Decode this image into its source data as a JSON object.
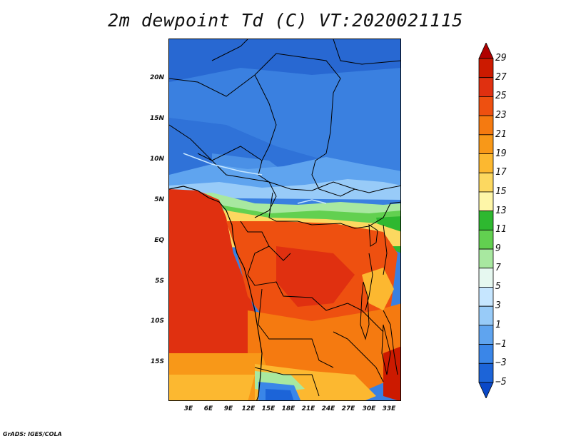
{
  "title": "2m dewpoint Td (C) VT:2020021115",
  "credit": "GrADS: IGES/COLA",
  "map": {
    "y_ticks": [
      "20N",
      "15N",
      "10N",
      "5N",
      "EQ",
      "5S",
      "10S",
      "15S"
    ],
    "x_ticks": [
      "3E",
      "6E",
      "9E",
      "12E",
      "15E",
      "18E",
      "21E",
      "24E",
      "27E",
      "30E",
      "33E"
    ],
    "lat_range": [
      -20,
      25
    ],
    "lon_range": [
      0,
      35
    ]
  },
  "colorbar": {
    "levels": [
      "29",
      "27",
      "25",
      "23",
      "21",
      "19",
      "17",
      "15",
      "13",
      "11",
      "9",
      "7",
      "5",
      "3",
      "1",
      "−1",
      "−3",
      "−5"
    ],
    "colors": [
      "#b00000",
      "#cc1a00",
      "#e03010",
      "#ee5010",
      "#f57a10",
      "#f89818",
      "#fcb830",
      "#fcd860",
      "#fef6a8",
      "#2eb830",
      "#62d050",
      "#a8e8a0",
      "#e6f8f0",
      "#c6e6ff",
      "#98cbf8",
      "#5fa4ef",
      "#3a86e8",
      "#1c64d8",
      "#0a48c8"
    ]
  }
}
